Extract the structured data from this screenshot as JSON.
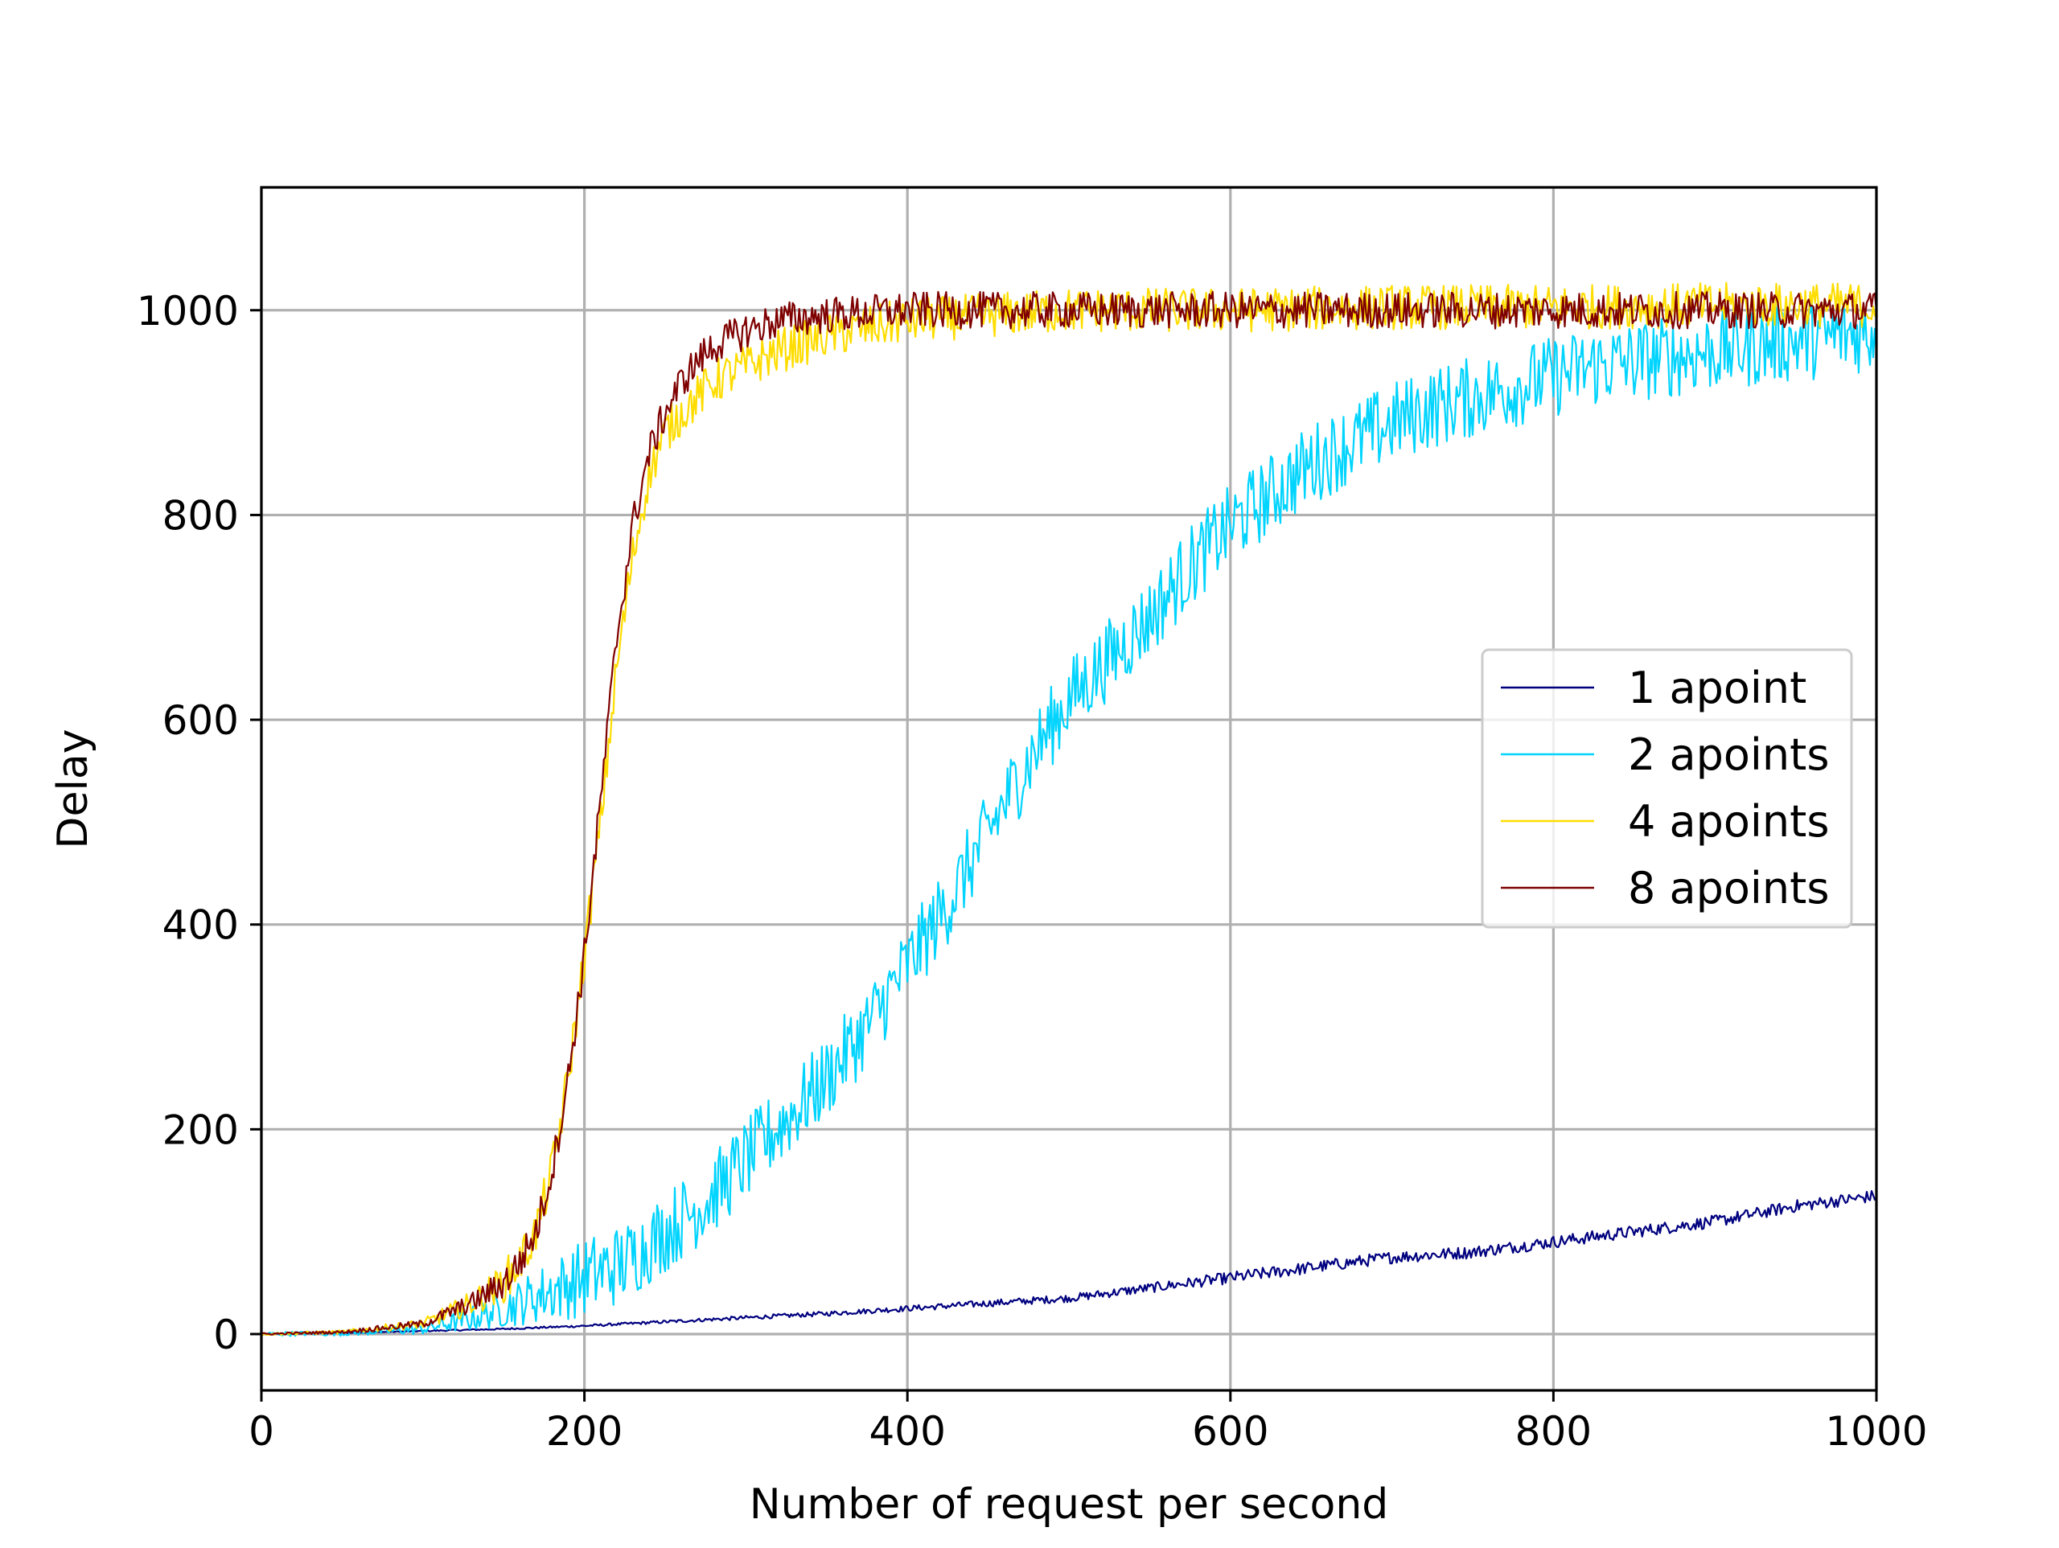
{
  "chart_data": {
    "type": "line",
    "title": "",
    "xlabel": "Number of request per second",
    "ylabel": "Delay",
    "xlim": [
      0,
      1000
    ],
    "ylim": [
      -55,
      1120
    ],
    "xticks": [
      0,
      200,
      400,
      600,
      800,
      1000
    ],
    "xtick_labels": [
      "0",
      "200",
      "400",
      "600",
      "800",
      "1000"
    ],
    "yticks": [
      0,
      200,
      400,
      600,
      800,
      1000
    ],
    "ytick_labels": [
      "0",
      "200",
      "400",
      "600",
      "800",
      "1000"
    ],
    "grid": true,
    "legend_position": "center-right",
    "noise_note_omitted": true,
    "series": [
      {
        "name": "1 apoint",
        "color": "#00007f",
        "x": [
          0,
          50,
          100,
          150,
          200,
          250,
          300,
          350,
          400,
          450,
          500,
          550,
          600,
          650,
          700,
          750,
          800,
          850,
          900,
          950,
          1000
        ],
        "y": [
          0,
          1,
          3,
          5,
          8,
          12,
          16,
          20,
          25,
          30,
          35,
          45,
          55,
          65,
          75,
          80,
          90,
          100,
          110,
          125,
          135
        ],
        "noise": 6
      },
      {
        "name": "2 apoints",
        "color": "#00d4ff",
        "x": [
          0,
          50,
          100,
          130,
          150,
          175,
          200,
          225,
          250,
          275,
          300,
          325,
          350,
          375,
          400,
          425,
          450,
          475,
          500,
          525,
          550,
          575,
          600,
          625,
          650,
          675,
          700,
          725,
          750,
          775,
          800,
          825,
          850,
          875,
          900,
          925,
          950,
          975,
          1000
        ],
        "y": [
          0,
          1,
          5,
          15,
          25,
          40,
          55,
          70,
          100,
          130,
          170,
          210,
          250,
          300,
          360,
          420,
          490,
          560,
          620,
          660,
          700,
          750,
          790,
          820,
          850,
          870,
          890,
          905,
          915,
          925,
          935,
          945,
          950,
          955,
          960,
          965,
          970,
          975,
          980
        ],
        "noise": 40
      },
      {
        "name": "4 apoints",
        "color": "#ffdd00",
        "x": [
          0,
          50,
          100,
          130,
          150,
          160,
          170,
          180,
          190,
          200,
          210,
          220,
          230,
          240,
          250,
          260,
          270,
          280,
          300,
          320,
          350,
          400,
          450,
          500,
          600,
          700,
          800,
          900,
          1000
        ],
        "y": [
          0,
          2,
          10,
          30,
          50,
          70,
          100,
          160,
          250,
          370,
          500,
          650,
          760,
          840,
          880,
          900,
          915,
          930,
          945,
          960,
          975,
          990,
          995,
          1000,
          1000,
          1003,
          1003,
          1005,
          1005
        ],
        "noise": 22
      },
      {
        "name": "8 apoints",
        "color": "#7f0000",
        "x": [
          0,
          50,
          100,
          130,
          150,
          160,
          170,
          180,
          190,
          200,
          210,
          220,
          230,
          240,
          250,
          260,
          270,
          280,
          300,
          320,
          350,
          400,
          450,
          500,
          600,
          700,
          800,
          900,
          1000
        ],
        "y": [
          0,
          2,
          10,
          30,
          50,
          70,
          100,
          160,
          250,
          370,
          520,
          680,
          790,
          860,
          900,
          930,
          950,
          965,
          980,
          990,
          995,
          1000,
          1000,
          1000,
          1000,
          1000,
          1000,
          1000,
          1000
        ],
        "noise": 18
      }
    ]
  }
}
